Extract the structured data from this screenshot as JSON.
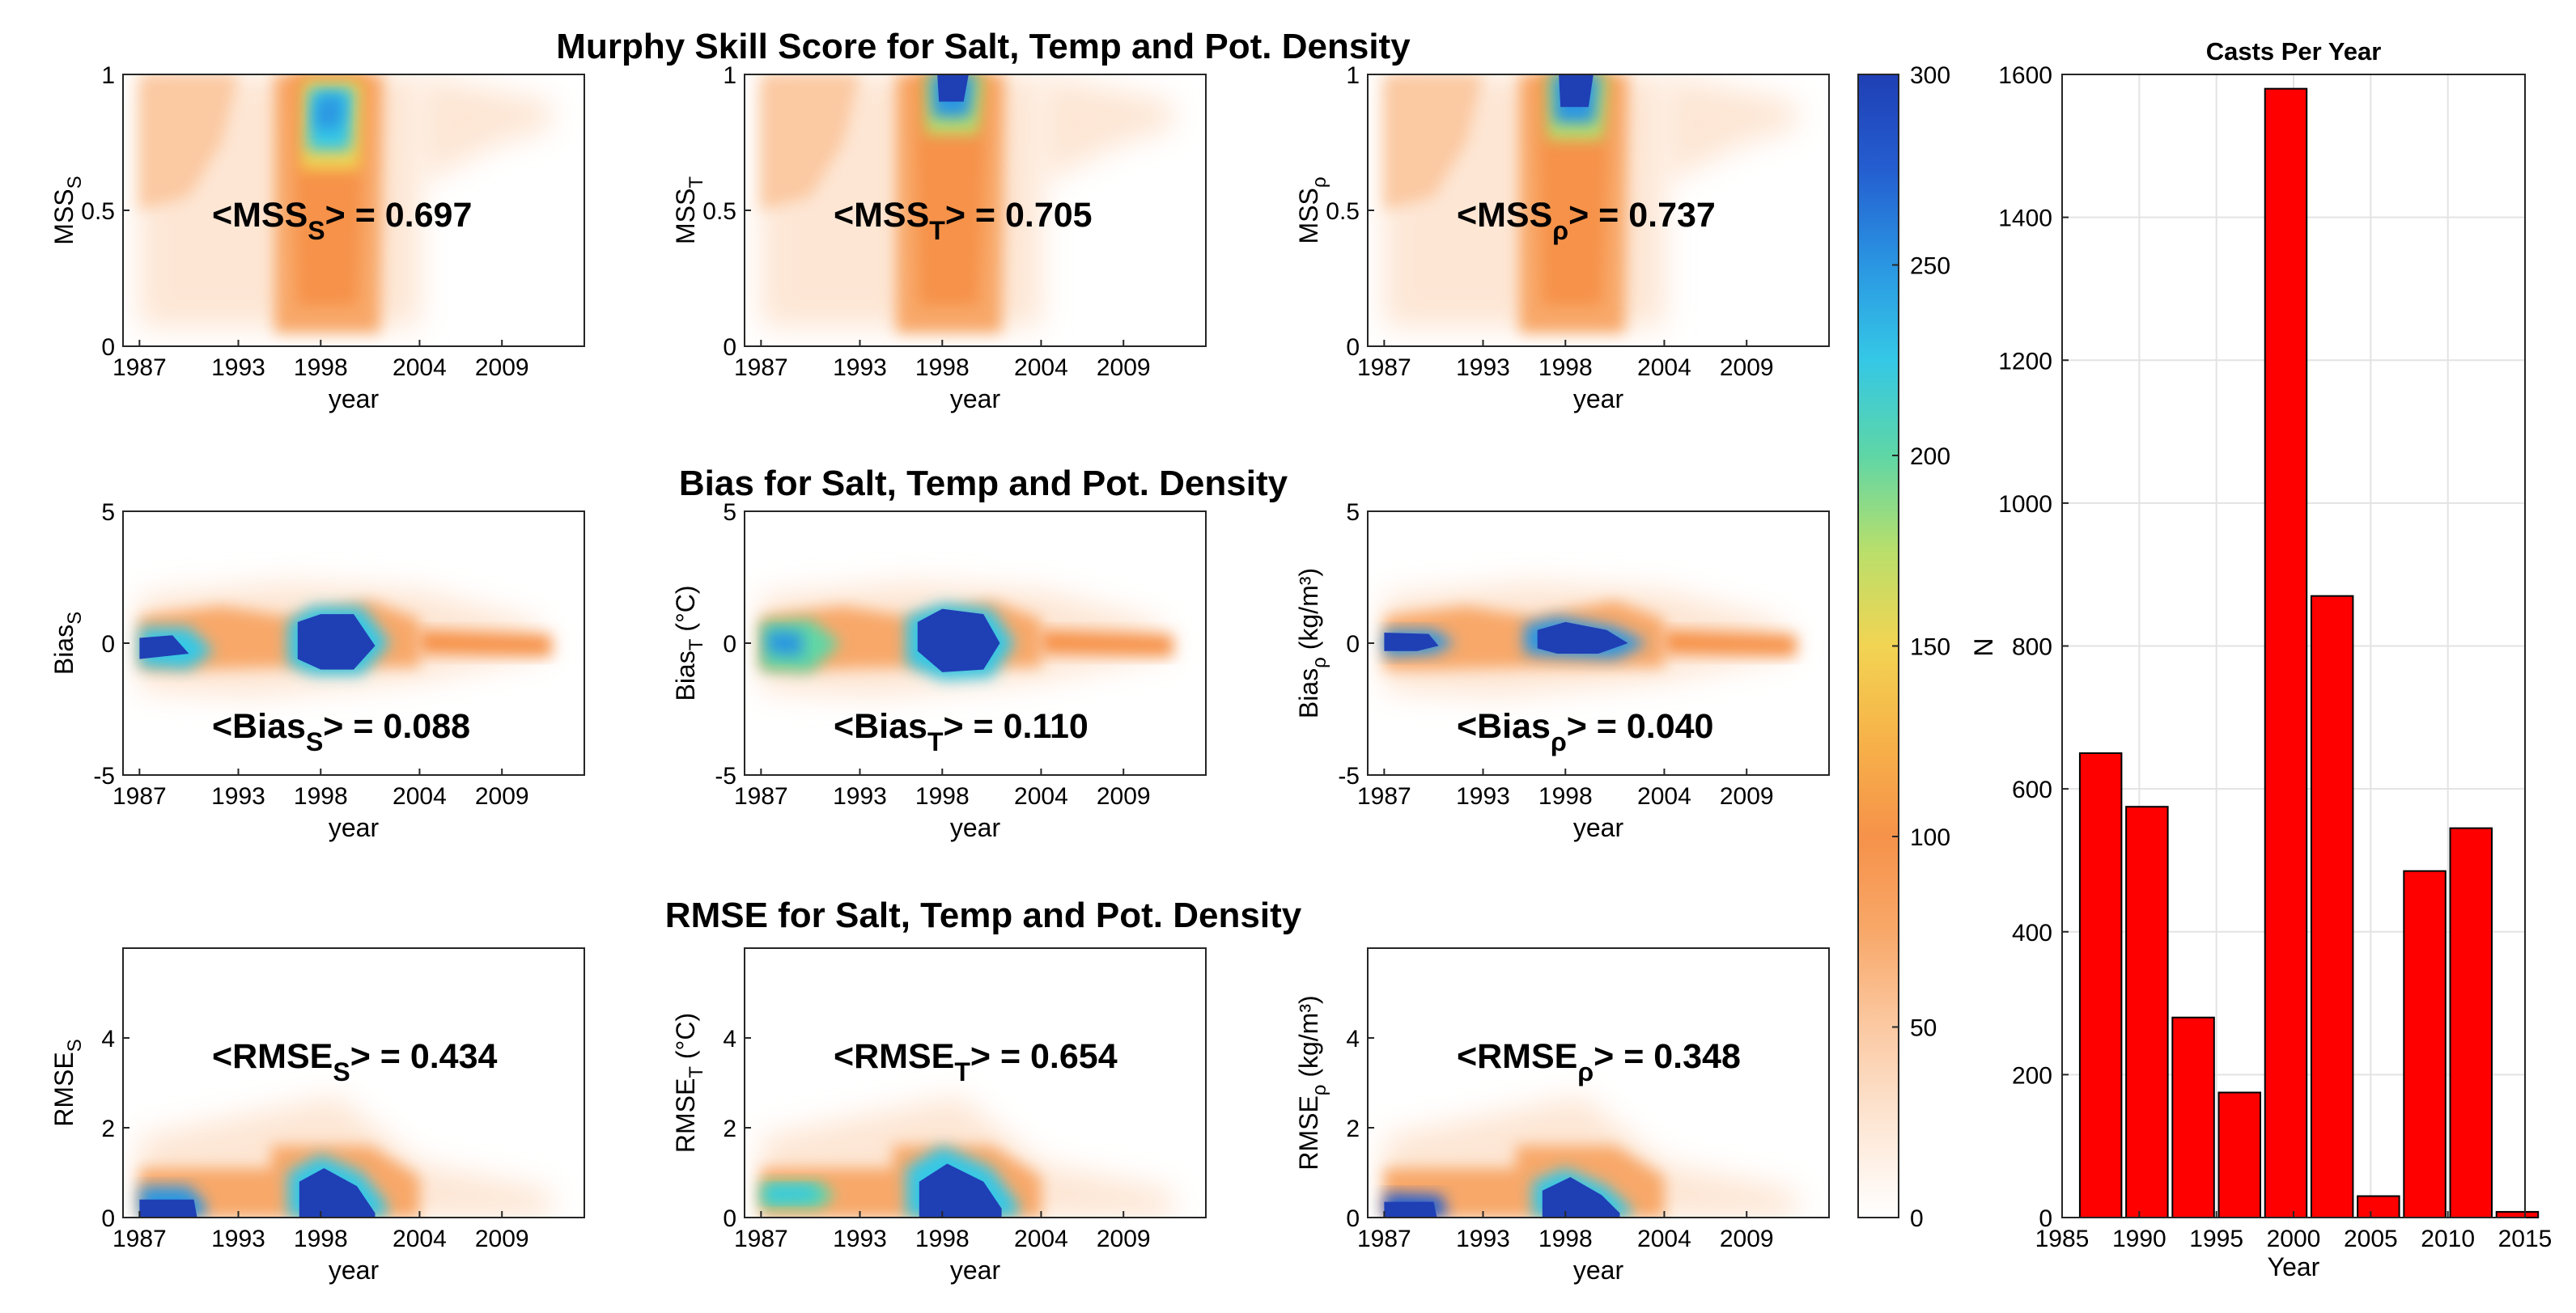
{
  "figure": {
    "row_titles": [
      "Murphy Skill Score for Salt,  Temp and Pot. Density",
      "Bias for Salt,  Temp and Pot. Density",
      "RMSE for Salt,  Temp and Pot. Density"
    ],
    "year_ticks": [
      "1987",
      "1993",
      "1998",
      "2004",
      "2009"
    ],
    "year_xlabel": "year",
    "rows": [
      {
        "key": "mss",
        "ylim": [
          0,
          1
        ],
        "yticks": [
          "0",
          "0.5",
          "1"
        ],
        "panels": [
          {
            "ylabel": "MSS",
            "ylabel_sub": "S",
            "ylabel_tail": "",
            "stat_prefix": "<MSS",
            "stat_sub": "S",
            "stat_value": "> = 0.697"
          },
          {
            "ylabel": "MSS",
            "ylabel_sub": "T",
            "ylabel_tail": "",
            "stat_prefix": "<MSS",
            "stat_sub": "T",
            "stat_value": "> = 0.705"
          },
          {
            "ylabel": "MSS",
            "ylabel_sub": "ρ",
            "ylabel_tail": "",
            "stat_prefix": "<MSS",
            "stat_sub": "ρ",
            "stat_value": "> = 0.737"
          }
        ]
      },
      {
        "key": "bias",
        "ylim": [
          -5,
          5
        ],
        "yticks": [
          "-5",
          "0",
          "5"
        ],
        "panels": [
          {
            "ylabel": "Bias",
            "ylabel_sub": "S",
            "ylabel_tail": "",
            "stat_prefix": "<Bias",
            "stat_sub": "S",
            "stat_value": "> = 0.088"
          },
          {
            "ylabel": "Bias",
            "ylabel_sub": "T",
            "ylabel_tail": " (°C)",
            "stat_prefix": "<Bias",
            "stat_sub": "T",
            "stat_value": "> = 0.110"
          },
          {
            "ylabel": "Bias",
            "ylabel_sub": "ρ",
            "ylabel_tail": " (kg/m³)",
            "stat_prefix": "<Bias",
            "stat_sub": "ρ",
            "stat_value": "> = 0.040"
          }
        ]
      },
      {
        "key": "rmse",
        "ylim": [
          0,
          6
        ],
        "yticks": [
          "0",
          "2",
          "4"
        ],
        "panels": [
          {
            "ylabel": "RMSE",
            "ylabel_sub": "S",
            "ylabel_tail": "",
            "stat_prefix": "<RMSE",
            "stat_sub": "S",
            "stat_value": "> = 0.434"
          },
          {
            "ylabel": "RMSE",
            "ylabel_sub": "T",
            "ylabel_tail": " (°C)",
            "stat_prefix": "<RMSE",
            "stat_sub": "T",
            "stat_value": "> = 0.654"
          },
          {
            "ylabel": "RMSE",
            "ylabel_sub": "ρ",
            "ylabel_tail": " (kg/m³)",
            "stat_prefix": "<RMSE",
            "stat_sub": "ρ",
            "stat_value": "> = 0.348"
          }
        ]
      }
    ]
  },
  "colorbar": {
    "min": 0,
    "max": 300,
    "ticks": [
      "0",
      "50",
      "100",
      "150",
      "200",
      "250",
      "300"
    ],
    "label": "N",
    "colors": [
      "#ffffff",
      "#fde6d4",
      "#fbc9a2",
      "#f8a869",
      "#f6924a",
      "#f7b249",
      "#f2d452",
      "#b9df6b",
      "#5ed6a6",
      "#35c8e6",
      "#2a96e2",
      "#245ed0",
      "#1f3fb5"
    ]
  },
  "chart_data": [
    {
      "type": "heatmap",
      "title": "Murphy Skill Score for Salt,  Temp and Pot. Density",
      "xlabel": "year",
      "x_ticks": [
        1987,
        1993,
        1998,
        2004,
        2009
      ],
      "xlim": [
        1986,
        2014
      ],
      "panels": [
        {
          "ylabel": "MSS_S",
          "ylim": [
            0,
            1
          ],
          "mean_label": "<MSS_S> = 0.697",
          "mean": 0.697
        },
        {
          "ylabel": "MSS_T",
          "ylim": [
            0,
            1
          ],
          "mean_label": "<MSS_T> = 0.705",
          "mean": 0.705
        },
        {
          "ylabel": "MSS_ρ",
          "ylim": [
            0,
            1
          ],
          "mean_label": "<MSS_ρ> = 0.737",
          "mean": 0.737
        }
      ],
      "colorbar": {
        "label": "N",
        "range": [
          0,
          300
        ]
      }
    },
    {
      "type": "heatmap",
      "title": "Bias for Salt,  Temp and Pot. Density",
      "xlabel": "year",
      "x_ticks": [
        1987,
        1993,
        1998,
        2004,
        2009
      ],
      "xlim": [
        1986,
        2014
      ],
      "panels": [
        {
          "ylabel": "Bias_S",
          "ylim": [
            -5,
            5
          ],
          "mean_label": "<Bias_S> = 0.088",
          "mean": 0.088
        },
        {
          "ylabel": "Bias_T (°C)",
          "ylim": [
            -5,
            5
          ],
          "mean_label": "<Bias_T> = 0.110",
          "mean": 0.11
        },
        {
          "ylabel": "Bias_ρ (kg/m³)",
          "ylim": [
            -5,
            5
          ],
          "mean_label": "<Bias_ρ> = 0.040",
          "mean": 0.04
        }
      ],
      "colorbar": {
        "label": "N",
        "range": [
          0,
          300
        ]
      }
    },
    {
      "type": "heatmap",
      "title": "RMSE for Salt,  Temp and Pot. Density",
      "xlabel": "year",
      "x_ticks": [
        1987,
        1993,
        1998,
        2004,
        2009
      ],
      "xlim": [
        1986,
        2014
      ],
      "panels": [
        {
          "ylabel": "RMSE_S",
          "ylim": [
            0,
            6
          ],
          "mean_label": "<RMSE_S> = 0.434",
          "mean": 0.434
        },
        {
          "ylabel": "RMSE_T (°C)",
          "ylim": [
            0,
            6
          ],
          "mean_label": "<RMSE_T> = 0.654",
          "mean": 0.654
        },
        {
          "ylabel": "RMSE_ρ (kg/m³)",
          "ylim": [
            0,
            6
          ],
          "mean_label": "<RMSE_ρ> = 0.348",
          "mean": 0.348
        }
      ],
      "colorbar": {
        "label": "N",
        "range": [
          0,
          300
        ]
      }
    },
    {
      "type": "bar",
      "title": "Casts Per Year",
      "xlabel": "Year",
      "ylabel": "",
      "x": [
        1987.5,
        1990.5,
        1993.5,
        1996.5,
        1999.5,
        2002.5,
        2005.5,
        2008.5,
        2011.5,
        2014.5
      ],
      "values": [
        650,
        575,
        280,
        175,
        1580,
        870,
        30,
        485,
        545,
        8
      ],
      "xlim": [
        1985,
        2015
      ],
      "ylim": [
        0,
        1600
      ],
      "x_ticks": [
        "1985",
        "1990",
        "1995",
        "2000",
        "2005",
        "2010",
        "2015"
      ],
      "y_ticks": [
        "0",
        "200",
        "400",
        "600",
        "800",
        "1000",
        "1200",
        "1400",
        "1600"
      ],
      "bar_color": "#ff0000"
    }
  ]
}
